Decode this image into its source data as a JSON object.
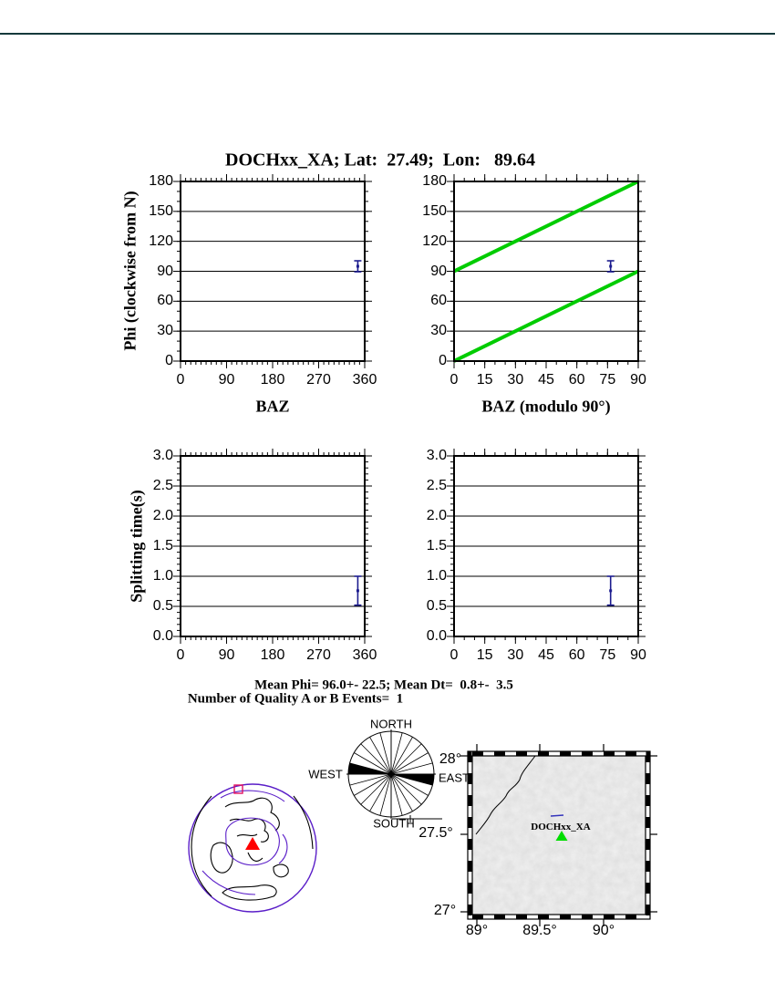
{
  "page": {
    "title": "DOCHxx_XA; Lat:  27.49;  Lon:   89.64"
  },
  "stats": {
    "line1": "Mean Phi= 96.0+- 22.5; Mean Dt=  0.8+-  3.5",
    "line2": "Number of Quality A or B Events=  1"
  },
  "compass": {
    "north": "NORTH",
    "east": "EAST",
    "south": "SOUTH",
    "west": "WEST"
  },
  "map": {
    "station_label": "DOCHxx_XA",
    "xticks": [
      "89°",
      "89.5°",
      "90°"
    ],
    "yticks": [
      "28°",
      "27.5°",
      "27°"
    ]
  },
  "colors": {
    "accent_green": "#00cc00",
    "point_navy": "#1c1c8f",
    "marker_red": "#ff0000",
    "station_green": "#00dd00",
    "boundary_purple": "#5a1ec8"
  },
  "rose": {
    "spoke_step_deg": 15,
    "filled_sectors": [
      [
        90,
        105
      ],
      [
        270,
        285
      ]
    ]
  },
  "chart_data": [
    {
      "id": "phi-vs-baz",
      "type": "scatter",
      "xlabel": "BAZ",
      "ylabel": "Phi (clockwise from N)",
      "x_range": [
        0,
        360
      ],
      "x_major": 90,
      "x_minor": 10,
      "x_tick_labels": [
        "0",
        "90",
        "180",
        "270",
        "360"
      ],
      "y_range": [
        0,
        180
      ],
      "y_major": 30,
      "y_minor": 10,
      "y_tick_labels": [
        "0",
        "30",
        "60",
        "90",
        "120",
        "150",
        "180"
      ],
      "grid": "y-major",
      "legend": "none",
      "points": [
        {
          "x": 346.5,
          "y": 95,
          "err": [
            89.5,
            100.5
          ]
        }
      ],
      "lines": []
    },
    {
      "id": "phi-vs-baz-mod90",
      "type": "scatter",
      "xlabel": "BAZ (modulo 90°)",
      "ylabel": "",
      "x_range": [
        0,
        90
      ],
      "x_major": 15,
      "x_minor": 5,
      "x_tick_labels": [
        "0",
        "15",
        "30",
        "45",
        "60",
        "75",
        "90"
      ],
      "y_range": [
        0,
        180
      ],
      "y_major": 30,
      "y_minor": 10,
      "y_tick_labels": [
        "0",
        "30",
        "60",
        "90",
        "120",
        "150",
        "180"
      ],
      "grid": "y-major",
      "legend": "none",
      "points": [
        {
          "x": 76.5,
          "y": 95,
          "err": [
            89.5,
            100.5
          ]
        }
      ],
      "lines": [
        {
          "x1": 0,
          "y1": 0,
          "x2": 90,
          "y2": 90
        },
        {
          "x1": 0,
          "y1": 90,
          "x2": 90,
          "y2": 180
        }
      ]
    },
    {
      "id": "dt-vs-baz",
      "type": "scatter",
      "xlabel": "",
      "ylabel": "Splitting time(s)",
      "x_range": [
        0,
        360
      ],
      "x_major": 90,
      "x_minor": 10,
      "x_tick_labels": [
        "0",
        "90",
        "180",
        "270",
        "360"
      ],
      "y_range": [
        0,
        3
      ],
      "y_major": 0.5,
      "y_minor": 0.1,
      "y_tick_labels": [
        "0.0",
        "0.5",
        "1.0",
        "1.5",
        "2.0",
        "2.5",
        "3.0"
      ],
      "grid": "y-major",
      "legend": "none",
      "points": [
        {
          "x": 346.5,
          "y": 0.76,
          "err": [
            0.52,
            1.0
          ]
        }
      ],
      "lines": []
    },
    {
      "id": "dt-vs-baz-mod90",
      "type": "scatter",
      "xlabel": "",
      "ylabel": "",
      "x_range": [
        0,
        90
      ],
      "x_major": 15,
      "x_minor": 5,
      "x_tick_labels": [
        "0",
        "15",
        "30",
        "45",
        "60",
        "75",
        "90"
      ],
      "y_range": [
        0,
        3
      ],
      "y_major": 0.5,
      "y_minor": 0.1,
      "y_tick_labels": [
        "0.0",
        "0.5",
        "1.0",
        "1.5",
        "2.0",
        "2.5",
        "3.0"
      ],
      "grid": "y-major",
      "legend": "none",
      "points": [
        {
          "x": 76.5,
          "y": 0.76,
          "err": [
            0.52,
            1.0
          ]
        }
      ],
      "lines": []
    }
  ]
}
